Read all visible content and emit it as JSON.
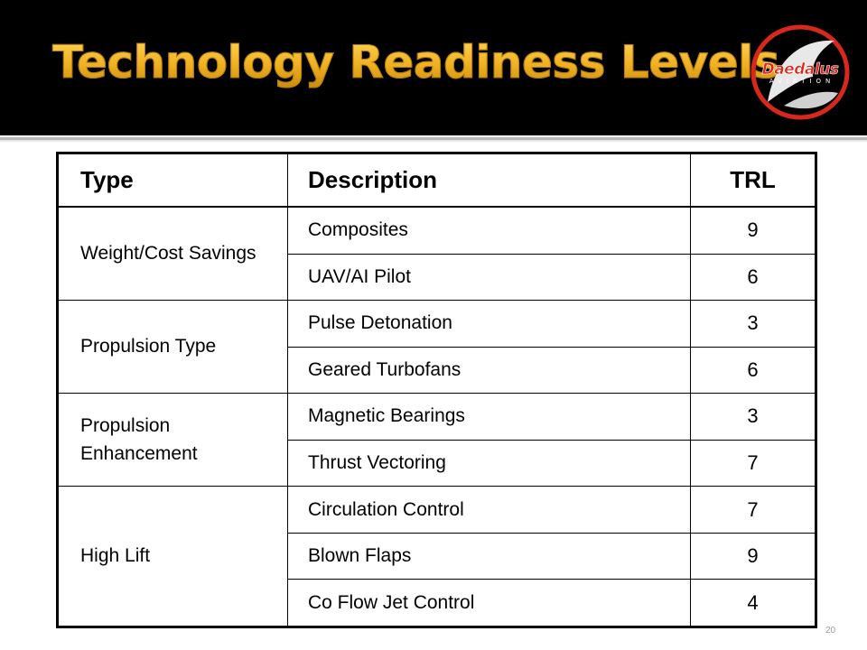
{
  "slide": {
    "title": "Technology Readiness Levels",
    "page_number": "20"
  },
  "logo": {
    "name": "Daedalus",
    "subtitle": "AVIATION"
  },
  "table": {
    "headers": [
      "Type",
      "Description",
      "TRL"
    ],
    "groups": [
      {
        "type": "Weight/Cost Savings",
        "items": [
          {
            "description": "Composites",
            "trl": "9"
          },
          {
            "description": "UAV/AI Pilot",
            "trl": "6"
          }
        ]
      },
      {
        "type": "Propulsion Type",
        "items": [
          {
            "description": "Pulse Detonation",
            "trl": "3"
          },
          {
            "description": "Geared Turbofans",
            "trl": "6"
          }
        ]
      },
      {
        "type": "Propulsion Enhancement",
        "items": [
          {
            "description": "Magnetic Bearings",
            "trl": "3"
          },
          {
            "description": "Thrust Vectoring",
            "trl": "7"
          }
        ]
      },
      {
        "type": "High Lift",
        "items": [
          {
            "description": "Circulation Control",
            "trl": "7"
          },
          {
            "description": "Blown Flaps",
            "trl": "9"
          },
          {
            "description": "Co Flow Jet Control",
            "trl": "4"
          }
        ]
      }
    ]
  },
  "colors": {
    "title_gold": "#f0b020",
    "header_bg": "#000000",
    "logo_red": "#d8281c"
  }
}
